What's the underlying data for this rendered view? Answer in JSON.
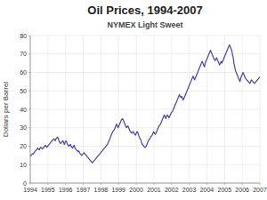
{
  "chart_data": {
    "type": "line",
    "title": "Oil Prices, 1994-2007",
    "subtitle": "NYMEX Light Sweet",
    "y_label": "Dollars per Barrel",
    "color": "#4444aa",
    "grid": true,
    "xlim": [
      1994.0,
      2007.0
    ],
    "xticks": [
      1994,
      1995,
      1996,
      1997,
      1998,
      1999,
      2000,
      2001,
      2002,
      2003,
      2004,
      2005,
      2006,
      2007
    ],
    "ylim": [
      0,
      80
    ],
    "yticks": [
      0,
      10,
      20,
      30,
      40,
      50,
      60,
      70,
      80
    ],
    "x": [
      1994.0,
      1994.042871,
      1994.085743,
      1994.128614,
      1994.171485,
      1994.214356,
      1994.257228,
      1994.300099,
      1994.34297,
      1994.385842,
      1994.428713,
      1994.471584,
      1994.514455,
      1994.557327,
      1994.600198,
      1994.643069,
      1994.685941,
      1994.728812,
      1994.771683,
      1994.814554,
      1994.857426,
      1994.900297,
      1994.943168,
      1994.98604,
      1995.028911,
      1995.071782,
      1995.114653,
      1995.157525,
      1995.200396,
      1995.243267,
      1995.286139,
      1995.32901,
      1995.371881,
      1995.414752,
      1995.457624,
      1995.500495,
      1995.543366,
      1995.586238,
      1995.629109,
      1995.67198,
      1995.714851,
      1995.757723,
      1995.800594,
      1995.843465,
      1995.886337,
      1995.929208,
      1995.972079,
      1996.01495,
      1996.057822,
      1996.100693,
      1996.143564,
      1996.186436,
      1996.229307,
      1996.272178,
      1996.31505,
      1996.357921,
      1996.400792,
      1996.443663,
      1996.486535,
      1996.529406,
      1996.572277,
      1996.615149,
      1996.65802,
      1996.700891,
      1996.743762,
      1996.786634,
      1996.829505,
      1996.872376,
      1996.915248,
      1996.958119,
      1997.00099,
      1997.043861,
      1997.086733,
      1997.129604,
      1997.172475,
      1997.215347,
      1997.258218,
      1997.301089,
      1997.34396,
      1997.386832,
      1997.429703,
      1997.472574,
      1997.515446,
      1997.558317,
      1997.601188,
      1997.644059,
      1997.686931,
      1997.729802,
      1997.772673,
      1997.815545,
      1997.858416,
      1997.901287,
      1997.944158,
      1997.98703,
      1998.029901,
      1998.072772,
      1998.115644,
      1998.158515,
      1998.201386,
      1998.244257,
      1998.287129,
      1998.33,
      1998.372871,
      1998.415743,
      1998.458614,
      1998.501485,
      1998.544356,
      1998.587228,
      1998.630099,
      1998.67297,
      1998.715842,
      1998.758713,
      1998.801584,
      1998.844455,
      1998.887327,
      1998.930198,
      1998.973069,
      1999.015941,
      1999.058812,
      1999.101683,
      1999.144554,
      1999.187426,
      1999.230297,
      1999.273168,
      1999.31604,
      1999.358911,
      1999.401782,
      1999.444653,
      1999.487525,
      1999.530396,
      1999.573267,
      1999.616139,
      1999.65901,
      1999.701881,
      1999.744752,
      1999.787624,
      1999.830495,
      1999.873366,
      1999.916238,
      1999.959109,
      2000.00198,
      2000.044851,
      2000.087723,
      2000.130594,
      2000.173465,
      2000.216337,
      2000.259208,
      2000.302079,
      2000.34495,
      2000.387822,
      2000.430693,
      2000.473564,
      2000.516436,
      2000.559307,
      2000.602178,
      2000.64505,
      2000.687921,
      2000.730792,
      2000.773663,
      2000.816535,
      2000.859406,
      2000.902277,
      2000.945149,
      2000.98802,
      2001.030891,
      2001.073762,
      2001.116634,
      2001.159505,
      2001.202376,
      2001.245248,
      2001.288119,
      2001.33099,
      2001.373861,
      2001.416733,
      2001.459604,
      2001.502475,
      2001.545347,
      2001.588218,
      2001.631089,
      2001.67396,
      2001.716832,
      2001.759703,
      2001.802574,
      2001.845446,
      2001.888317,
      2001.931188,
      2001.974059,
      2002.016931,
      2002.059802,
      2002.102673,
      2002.145545,
      2002.188416,
      2002.231287,
      2002.274158,
      2002.31703,
      2002.359901,
      2002.402772,
      2002.445644,
      2002.488515,
      2002.531386,
      2002.574257,
      2002.617129,
      2002.66,
      2002.702871,
      2002.745743,
      2002.788614,
      2002.831485,
      2002.874356,
      2002.917228,
      2002.960099,
      2003.00297,
      2003.045842,
      2003.088713,
      2003.131584,
      2003.174455,
      2003.217327,
      2003.260198,
      2003.303069,
      2003.345941,
      2003.388812,
      2003.431683,
      2003.474554,
      2003.517426,
      2003.560297,
      2003.603168,
      2003.64604,
      2003.688911,
      2003.731782,
      2003.774653,
      2003.817525,
      2003.860396,
      2003.903267,
      2003.946139,
      2003.98901,
      2004.031881,
      2004.074752,
      2004.117624,
      2004.160495,
      2004.203366,
      2004.246238,
      2004.289109,
      2004.33198,
      2004.374851,
      2004.417723,
      2004.460594,
      2004.503465,
      2004.546337,
      2004.589208,
      2004.632079,
      2004.67495,
      2004.717822,
      2004.760693,
      2004.803564,
      2004.846436,
      2004.889307,
      2004.932178,
      2004.97505,
      2005.017921,
      2005.060792,
      2005.103663,
      2005.146535,
      2005.189406,
      2005.232277,
      2005.275149,
      2005.31802,
      2005.360891,
      2005.403762,
      2005.446634,
      2005.489505,
      2005.532376,
      2005.575248,
      2005.618119,
      2005.66099,
      2005.703861,
      2005.746733,
      2005.789604,
      2005.832475,
      2005.875347,
      2005.918218,
      2005.961089,
      2006.00396,
      2006.046832,
      2006.089703,
      2006.132574,
      2006.175446,
      2006.218317,
      2006.261188,
      2006.304059,
      2006.346931,
      2006.389802,
      2006.432673,
      2006.475545,
      2006.518416,
      2006.561287,
      2006.604158,
      2006.64703,
      2006.689901,
      2006.732772,
      2006.775644,
      2006.818515,
      2006.861386,
      2006.904257,
      2006.947129,
      2006.99
    ],
    "values": [
      14.5,
      15.0,
      15.5,
      16.0,
      15.8,
      16.5,
      17.0,
      17.5,
      18.0,
      18.5,
      19.0,
      18.5,
      18.0,
      19.0,
      19.5,
      19.0,
      18.5,
      19.0,
      19.5,
      20.0,
      20.5,
      20.0,
      19.5,
      20.0,
      20.5,
      21.0,
      21.5,
      22.0,
      22.5,
      23.0,
      23.5,
      24.0,
      23.5,
      23.0,
      24.0,
      24.5,
      25.0,
      24.0,
      23.0,
      22.0,
      21.5,
      22.0,
      22.5,
      23.0,
      22.0,
      21.0,
      22.0,
      23.0,
      22.5,
      21.0,
      20.5,
      20.0,
      20.5,
      21.0,
      20.0,
      19.5,
      19.0,
      20.0,
      20.5,
      19.0,
      18.5,
      18.0,
      17.5,
      17.0,
      17.5,
      16.5,
      16.0,
      15.5,
      15.0,
      15.5,
      16.0,
      16.5,
      16.0,
      15.5,
      15.0,
      14.5,
      14.0,
      13.5,
      13.0,
      12.5,
      12.0,
      11.5,
      11.0,
      11.5,
      12.0,
      12.5,
      13.0,
      13.5,
      14.0,
      14.5,
      15.0,
      15.5,
      16.0,
      16.5,
      17.0,
      17.5,
      18.0,
      18.5,
      19.0,
      19.5,
      20.0,
      20.5,
      21.0,
      22.0,
      23.0,
      24.0,
      25.0,
      26.0,
      27.0,
      28.0,
      28.5,
      29.0,
      30.0,
      31.0,
      32.0,
      31.0,
      30.0,
      31.0,
      32.0,
      33.0,
      34.0,
      34.5,
      35.0,
      34.0,
      33.0,
      32.0,
      31.0,
      30.0,
      30.5,
      31.0,
      30.0,
      29.0,
      28.0,
      27.5,
      27.0,
      27.5,
      28.0,
      27.0,
      26.5,
      26.0,
      27.0,
      28.0,
      27.5,
      26.0,
      25.0,
      24.0,
      23.5,
      22.0,
      21.0,
      20.5,
      20.0,
      19.5,
      19.5,
      20.0,
      21.0,
      22.0,
      23.0,
      23.5,
      24.0,
      25.0,
      25.5,
      26.0,
      27.0,
      28.0,
      27.0,
      26.5,
      27.0,
      28.0,
      29.0,
      30.0,
      31.0,
      31.5,
      32.0,
      33.0,
      34.0,
      35.0,
      36.0,
      37.0,
      36.0,
      35.0,
      36.0,
      37.0,
      36.5,
      35.5,
      36.0,
      37.0,
      38.0,
      38.5,
      39.0,
      40.0,
      41.0,
      42.0,
      43.0,
      44.0,
      45.0,
      46.0,
      47.0,
      48.0,
      47.0,
      46.5,
      47.0,
      46.0,
      45.0,
      46.0,
      47.0,
      48.0,
      49.0,
      50.0,
      51.0,
      52.0,
      53.0,
      54.0,
      55.0,
      56.0,
      57.0,
      58.0,
      57.0,
      56.0,
      57.0,
      58.0,
      59.0,
      60.0,
      61.0,
      62.0,
      63.0,
      64.0,
      65.0,
      66.0,
      65.0,
      64.0,
      63.0,
      65.0,
      66.0,
      67.0,
      68.0,
      69.0,
      70.0,
      71.0,
      72.0,
      71.0,
      70.0,
      69.0,
      68.0,
      67.0,
      66.5,
      67.0,
      68.0,
      67.0,
      66.0,
      65.0,
      64.0,
      65.0,
      66.0,
      65.0,
      66.0,
      67.0,
      68.0,
      69.0,
      70.0,
      71.0,
      72.0,
      73.0,
      74.0,
      75.0,
      74.0,
      73.0,
      72.0,
      70.0,
      68.0,
      65.0,
      63.0,
      61.0,
      60.0,
      59.0,
      58.0,
      57.0,
      56.0,
      55.0,
      57.0,
      58.0,
      59.0,
      60.0,
      59.0,
      58.0,
      57.0,
      56.5,
      56.0,
      55.5,
      55.0,
      54.5,
      54.0,
      55.0,
      56.0,
      55.5,
      55.0,
      54.5,
      54.0,
      54.5,
      55.0,
      55.5,
      56.0,
      56.5,
      57.0,
      57.5
    ]
  }
}
